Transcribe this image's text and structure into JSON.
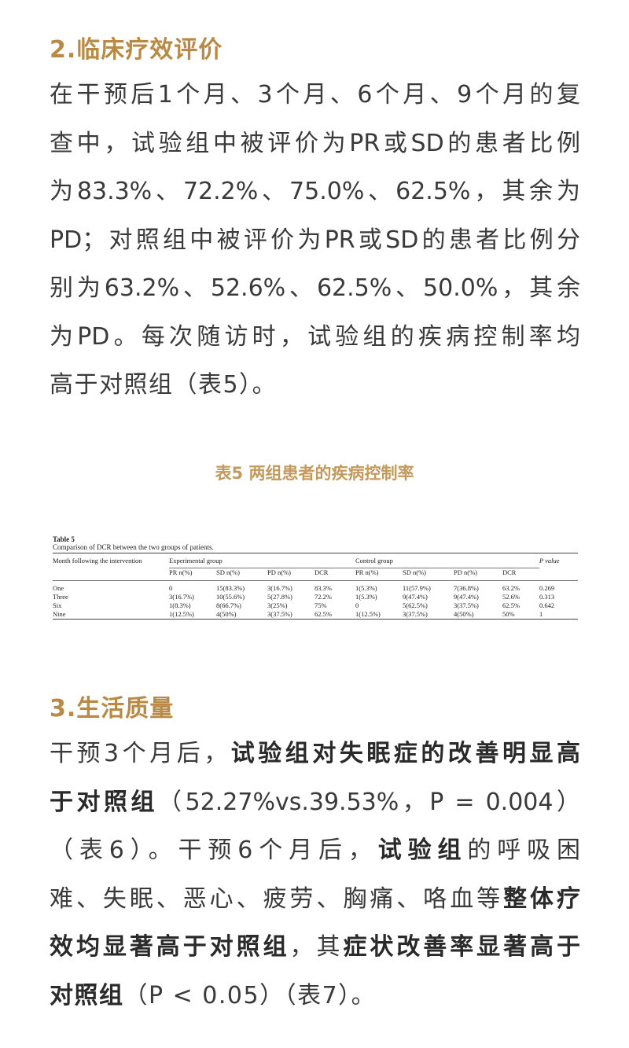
{
  "section2": {
    "heading": "2.临床疗效评价",
    "lines": [
      "在干预后1个月、3个月、6个月、9个月的复",
      "查中，试验组中被评价为PR或SD的患者比例",
      "为83.3%、72.2%、75.0%、62.5%，其余为",
      "PD；对照组中被评价为PR或SD的患者比例分",
      "别为63.2%、52.6%、62.5%、50.0%，其余",
      "为PD。每次随访时，试验组的疾病控制率均",
      "高于对照组（表5）。"
    ]
  },
  "caption": "表5 两组患者的疾病控制率",
  "table": {
    "label": "Table 5",
    "title": "Comparison of DCR between the two groups of patients.",
    "col_month": "Month following the intervention",
    "group_exp": "Experimental group",
    "group_ctrl": "Control group",
    "col_p": "P value",
    "sub": [
      "PR n(%)",
      "SD n(%)",
      "PD n(%)",
      "DCR"
    ],
    "rows": [
      [
        "One",
        "0",
        "15(83.3%)",
        "3(16.7%)",
        "83.3%",
        "1(5.3%)",
        "11(57.9%)",
        "7(36.8%)",
        "63.2%",
        "0.269"
      ],
      [
        "Three",
        "3(16.7%)",
        "10(55.6%)",
        "5(27.8%)",
        "72.2%",
        "1(5.3%)",
        "9(47.4%)",
        "9(47.4%)",
        "52.6%",
        "0.313"
      ],
      [
        "Six",
        "1(8.3%)",
        "8(66.7%)",
        "3(25%)",
        "75%",
        "0",
        "5(62.5%)",
        "3(37.5%)",
        "62.5%",
        "0.642"
      ],
      [
        "Nine",
        "1(12.5%)",
        "4(50%)",
        "3(37.5%)",
        "62.5%",
        "1(12.5%)",
        "3(37.5%)",
        "4(50%)",
        "50%",
        "1"
      ]
    ]
  },
  "section3": {
    "heading": "3.生活质量",
    "l1": [
      "干预3个月后，",
      "试验组对失眠症的改善明显高"
    ],
    "l2": [
      "于对照组",
      "（52.27%vs.39.53%，P = 0.004）"
    ],
    "l3": [
      "（表6）。干预6个月后，",
      "试验组",
      "的呼吸困"
    ],
    "l4": [
      "难、失眠、恶心、疲劳、胸痛、咯血等",
      "整体疗"
    ],
    "l5": [
      "效均显著高于对照组",
      "，其",
      "症状改善率显著高于"
    ],
    "l6": [
      "对照组",
      "（P < 0.05）（表7）。"
    ]
  }
}
